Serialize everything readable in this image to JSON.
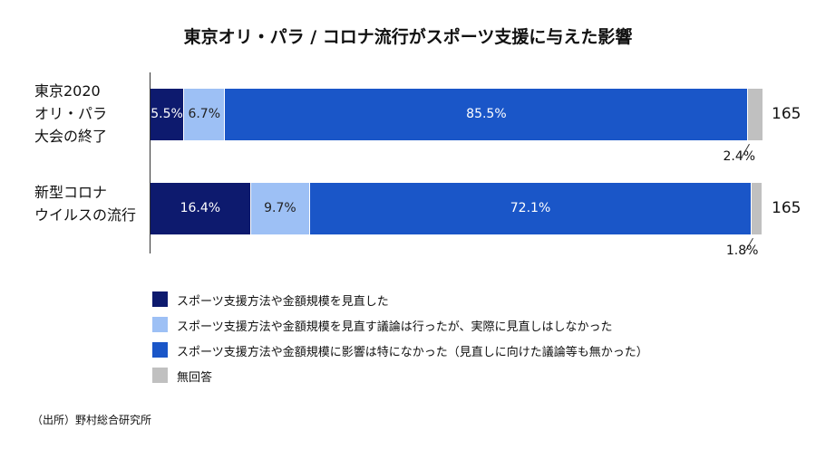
{
  "chart_data": {
    "type": "stacked_bar_100",
    "orientation": "horizontal",
    "title": "東京オリ・パラ / コロナ流行がスポーツ支援に与えた影響",
    "categories": [
      "東京2020\nオリ・パラ\n大会の終了",
      "新型コロナ\nウイルスの流行"
    ],
    "xlim": [
      0,
      100
    ],
    "series": [
      {
        "name": "スポーツ支援方法や金額規模を見直した",
        "color": "#0d1a6e",
        "values": [
          5.5,
          16.4
        ],
        "value_labels": [
          "5.5%",
          "16.4%"
        ]
      },
      {
        "name": "スポーツ支援方法や金額規模を見直す議論は行ったが、実際に見直しはしなかった",
        "color": "#9dc0f5",
        "values": [
          6.7,
          9.7
        ],
        "value_labels": [
          "6.7%",
          "9.7%"
        ]
      },
      {
        "name": "スポーツ支援方法や金額規模に影響は特になかった（見直しに向けた議論等も無かった）",
        "color": "#1a56c8",
        "values": [
          85.5,
          72.1
        ],
        "value_labels": [
          "85.5%",
          "72.1%"
        ]
      },
      {
        "name": "無回答",
        "color": "#c0c0c0",
        "values": [
          2.4,
          1.8
        ],
        "value_labels": [
          "2.4%",
          "1.8%"
        ]
      }
    ],
    "totals": [
      165,
      165
    ],
    "source": "（出所）野村総合研究所"
  }
}
